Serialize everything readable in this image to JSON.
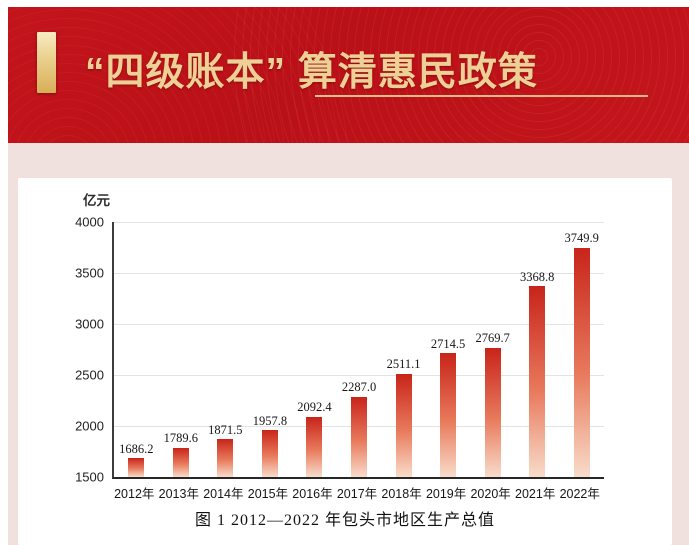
{
  "banner": {
    "title": "“四级账本” 算清惠民政策",
    "background_color": "#c0121a",
    "title_color": "#ecd096",
    "accent_gold": "#d9ae57"
  },
  "chart_data": {
    "type": "bar",
    "title": "图 1  2012—2022 年包头市地区生产总值",
    "unit_label": "亿元",
    "categories": [
      "2012年",
      "2013年",
      "2014年",
      "2015年",
      "2016年",
      "2017年",
      "2018年",
      "2019年",
      "2020年",
      "2021年",
      "2022年"
    ],
    "values": [
      1686.2,
      1789.6,
      1871.5,
      1957.8,
      2092.4,
      2287.0,
      2511.1,
      2714.5,
      2769.7,
      3368.8,
      3749.9
    ],
    "value_labels": [
      "1686.2",
      "1789.6",
      "1871.5",
      "1957.8",
      "2092.4",
      "2287.0",
      "2511.1",
      "2714.5",
      "2769.7",
      "3368.8",
      "3749.9"
    ],
    "ylim": [
      1500,
      4000
    ],
    "yticks": [
      4000,
      3500,
      3000,
      2500,
      2000,
      1500
    ],
    "grid": true,
    "legend": "none",
    "bar_gradient_top": "#c8241a",
    "bar_gradient_mid": "#e87a5c",
    "bar_gradient_bottom": "#f8dcca"
  }
}
